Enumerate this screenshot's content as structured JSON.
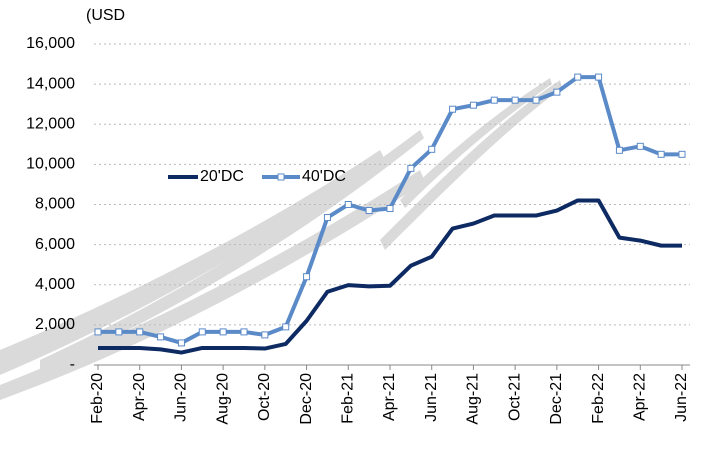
{
  "chart_data": {
    "type": "line",
    "title": "(USD",
    "categories": [
      "Feb-20",
      null,
      "Apr-20",
      null,
      "Jun-20",
      null,
      "Aug-20",
      null,
      "Oct-20",
      null,
      "Dec-20",
      null,
      "Feb-21",
      null,
      "Apr-21",
      null,
      "Jun-21",
      null,
      "Aug-21",
      null,
      "Oct-21",
      null,
      "Dec-21",
      null,
      "Feb-22",
      null,
      "Apr-22",
      null,
      "Jun-22"
    ],
    "series": [
      {
        "name": "20'DC",
        "color": "#0d2a63",
        "values": [
          850,
          850,
          850,
          780,
          620,
          850,
          850,
          850,
          820,
          1050,
          2200,
          3650,
          3980,
          3920,
          3950,
          4950,
          5400,
          6800,
          7050,
          7450,
          7450,
          7450,
          7700,
          8200,
          8200,
          6350,
          6200,
          5950,
          5950
        ]
      },
      {
        "name": "40'DC",
        "color": "#5b8ac8",
        "values": [
          1650,
          1650,
          1650,
          1400,
          1100,
          1650,
          1650,
          1650,
          1500,
          1900,
          4400,
          7350,
          8000,
          7700,
          7800,
          9800,
          10750,
          12750,
          12950,
          13200,
          13200,
          13200,
          13600,
          14350,
          14350,
          10700,
          10900,
          10500,
          10500
        ]
      }
    ],
    "ylim": [
      0,
      16000
    ],
    "yticks": [
      {
        "value": 0,
        "label": "-"
      },
      {
        "value": 2000,
        "label": "2,000"
      },
      {
        "value": 4000,
        "label": "4,000"
      },
      {
        "value": 6000,
        "label": "6,000"
      },
      {
        "value": 8000,
        "label": "8,000"
      },
      {
        "value": 10000,
        "label": "10,000"
      },
      {
        "value": 12000,
        "label": "12,000"
      },
      {
        "value": 14000,
        "label": "14,000"
      },
      {
        "value": 16000,
        "label": "16,000"
      }
    ],
    "grid": true
  }
}
